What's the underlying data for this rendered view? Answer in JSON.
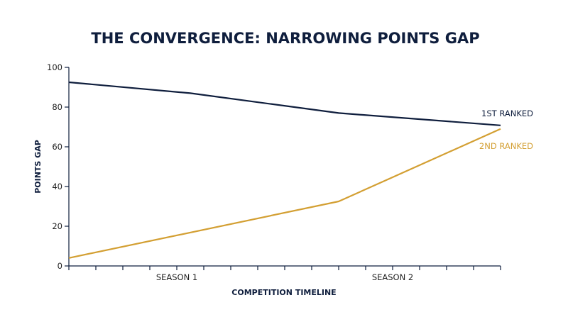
{
  "chart_data": {
    "type": "line",
    "title": "THE CONVERGENCE: NARROWING POINTS GAP",
    "xlabel": "COMPETITION TIMELINE",
    "ylabel": "POINTS GAP",
    "ylim": [
      0,
      100
    ],
    "yticks": [
      0,
      20,
      40,
      60,
      80,
      100
    ],
    "xlim": [
      0,
      16
    ],
    "xticks": [
      0,
      1,
      2,
      3,
      4,
      5,
      6,
      7,
      8,
      9,
      10,
      11,
      12,
      13,
      14,
      15,
      16
    ],
    "categories": [
      {
        "label": "SEASON 1",
        "x": 4
      },
      {
        "label": "SEASON 2",
        "x": 12
      }
    ],
    "series": [
      {
        "name": "1ST RANKED",
        "color": "#0f1e3d",
        "points": [
          [
            0,
            92.5
          ],
          [
            4.5,
            87
          ],
          [
            10,
            77
          ],
          [
            16,
            70.8
          ]
        ]
      },
      {
        "name": "2ND RANKED",
        "color": "#d39f32",
        "points": [
          [
            0,
            4
          ],
          [
            10,
            32.5
          ],
          [
            16,
            69
          ]
        ]
      }
    ],
    "grid": false,
    "legend": "inline-right"
  }
}
